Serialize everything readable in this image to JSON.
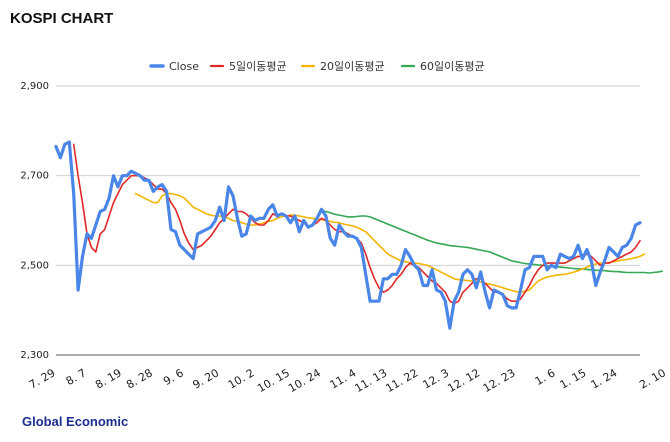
{
  "title": "KOSPI CHART",
  "source": "Global Economic",
  "chart_data": {
    "type": "line",
    "ylim": [
      2300,
      2900
    ],
    "yticks": [
      "2,900",
      "2,700",
      "2,500",
      "2,300"
    ],
    "ytick_values": [
      2900,
      2700,
      2500,
      2300
    ],
    "xtick_labels": [
      "7. 29",
      "8. 7",
      "8. 19",
      "8. 28",
      "9. 6",
      "9. 20",
      "10. 2",
      "10. 15",
      "10. 24",
      "11. 4",
      "11. 13",
      "11. 22",
      "12. 3",
      "12. 12",
      "12. 23",
      "1. 6",
      "1. 15",
      "1. 24",
      "2. 10"
    ],
    "xtick_index": [
      0,
      7,
      15,
      22,
      29,
      37,
      45,
      53,
      60,
      68,
      75,
      82,
      89,
      96,
      104,
      113,
      120,
      127,
      138
    ],
    "grid": true,
    "legend_position": "top",
    "colors": {
      "Close": "#4a86e8",
      "5일이동평균": "#e02828",
      "20일이동평균": "#f4b400",
      "60일이동평균": "#34a853"
    },
    "series": [
      {
        "name": "Close",
        "values": [
          2765,
          2740,
          2770,
          2775,
          2660,
          2445,
          2520,
          2570,
          2560,
          2590,
          2620,
          2625,
          2650,
          2700,
          2675,
          2700,
          2700,
          2710,
          2705,
          2700,
          2690,
          2690,
          2665,
          2675,
          2680,
          2665,
          2580,
          2575,
          2545,
          2535,
          2525,
          2515,
          2570,
          2575,
          2580,
          2585,
          2600,
          2630,
          2600,
          2675,
          2655,
          2605,
          2565,
          2570,
          2610,
          2600,
          2605,
          2605,
          2625,
          2635,
          2610,
          2615,
          2610,
          2595,
          2610,
          2575,
          2600,
          2585,
          2590,
          2605,
          2625,
          2610,
          2560,
          2545,
          2590,
          2575,
          2565,
          2565,
          2560,
          2540,
          2480,
          2420,
          2420,
          2420,
          2470,
          2470,
          2480,
          2480,
          2500,
          2535,
          2520,
          2500,
          2490,
          2455,
          2455,
          2490,
          2445,
          2440,
          2420,
          2360,
          2420,
          2440,
          2480,
          2490,
          2480,
          2450,
          2485,
          2440,
          2405,
          2445,
          2440,
          2435,
          2410,
          2405,
          2405,
          2445,
          2490,
          2495,
          2520,
          2520,
          2520,
          2490,
          2500,
          2495,
          2525,
          2520,
          2515,
          2520,
          2545,
          2515,
          2535,
          2510,
          2455,
          2485,
          2510,
          2540,
          2530,
          2520,
          2540,
          2545,
          2560,
          2590,
          2595
        ]
      },
      {
        "name": "5일이동평균",
        "values": [
          null,
          null,
          null,
          null,
          2770,
          2700,
          2640,
          2570,
          2540,
          2530,
          2570,
          2580,
          2610,
          2640,
          2660,
          2680,
          2690,
          2700,
          2700,
          2700,
          2695,
          2690,
          2680,
          2670,
          2670,
          2660,
          2640,
          2625,
          2600,
          2570,
          2550,
          2535,
          2540,
          2545,
          2555,
          2565,
          2580,
          2595,
          2605,
          2615,
          2625,
          2620,
          2620,
          2615,
          2605,
          2595,
          2590,
          2590,
          2600,
          2615,
          2610,
          2615,
          2610,
          2610,
          2605,
          2600,
          2595,
          2585,
          2590,
          2595,
          2605,
          2600,
          2590,
          2580,
          2575,
          2575,
          2570,
          2565,
          2560,
          2550,
          2525,
          2495,
          2470,
          2450,
          2440,
          2445,
          2455,
          2470,
          2480,
          2495,
          2505,
          2500,
          2495,
          2485,
          2475,
          2465,
          2460,
          2450,
          2440,
          2420,
          2415,
          2420,
          2440,
          2450,
          2460,
          2470,
          2470,
          2460,
          2450,
          2440,
          2440,
          2435,
          2425,
          2420,
          2420,
          2425,
          2440,
          2455,
          2475,
          2490,
          2500,
          2505,
          2505,
          2505,
          2505,
          2505,
          2510,
          2515,
          2520,
          2520,
          2525,
          2520,
          2510,
          2500,
          2505,
          2505,
          2510,
          2515,
          2520,
          2525,
          2530,
          2540,
          2555
        ]
      },
      {
        "name": "20일이동평균",
        "values": [
          null,
          null,
          null,
          null,
          null,
          null,
          null,
          null,
          null,
          null,
          null,
          null,
          null,
          null,
          null,
          null,
          null,
          null,
          2660,
          2655,
          2650,
          2645,
          2640,
          2640,
          2655,
          2660,
          2660,
          2658,
          2655,
          2650,
          2640,
          2630,
          2625,
          2620,
          2615,
          2612,
          2610,
          2610,
          2608,
          2605,
          2600,
          2598,
          2595,
          2592,
          2590,
          2590,
          2592,
          2595,
          2598,
          2600,
          2605,
          2608,
          2610,
          2612,
          2612,
          2610,
          2608,
          2606,
          2605,
          2603,
          2602,
          2600,
          2598,
          2596,
          2595,
          2592,
          2590,
          2588,
          2585,
          2580,
          2575,
          2565,
          2555,
          2545,
          2535,
          2525,
          2520,
          2515,
          2510,
          2508,
          2506,
          2505,
          2504,
          2502,
          2500,
          2495,
          2490,
          2485,
          2480,
          2475,
          2470,
          2468,
          2467,
          2466,
          2465,
          2464,
          2463,
          2460,
          2458,
          2456,
          2453,
          2450,
          2447,
          2444,
          2441,
          2440,
          2442,
          2445,
          2455,
          2465,
          2470,
          2474,
          2476,
          2478,
          2479,
          2480,
          2482,
          2485,
          2488,
          2492,
          2496,
          2500,
          2503,
          2505,
          2505,
          2506,
          2508,
          2510,
          2512,
          2513,
          2515,
          2517,
          2520,
          2525
        ]
      },
      {
        "name": "60일이동평균",
        "values": [
          null,
          null,
          null,
          null,
          null,
          null,
          null,
          null,
          null,
          null,
          null,
          null,
          null,
          null,
          null,
          null,
          null,
          null,
          null,
          null,
          null,
          null,
          null,
          null,
          null,
          null,
          null,
          null,
          null,
          null,
          null,
          null,
          null,
          null,
          null,
          null,
          null,
          null,
          null,
          null,
          null,
          null,
          null,
          null,
          null,
          null,
          null,
          null,
          null,
          null,
          null,
          null,
          null,
          null,
          null,
          null,
          null,
          null,
          null,
          null,
          2622,
          2620,
          2617,
          2614,
          2612,
          2610,
          2608,
          2608,
          2609,
          2610,
          2610,
          2608,
          2604,
          2600,
          2596,
          2592,
          2588,
          2584,
          2580,
          2576,
          2572,
          2568,
          2564,
          2560,
          2556,
          2553,
          2550,
          2548,
          2546,
          2544,
          2543,
          2542,
          2541,
          2540,
          2538,
          2536,
          2534,
          2532,
          2530,
          2526,
          2522,
          2518,
          2514,
          2510,
          2508,
          2506,
          2504,
          2503,
          2502,
          2501,
          2500,
          2499,
          2498,
          2497,
          2496,
          2495,
          2494,
          2493,
          2492,
          2492,
          2491,
          2490,
          2489,
          2489,
          2488,
          2487,
          2486,
          2486,
          2485,
          2484,
          2484,
          2484,
          2484,
          2484,
          2483,
          2484,
          2485,
          2487
        ]
      }
    ]
  }
}
